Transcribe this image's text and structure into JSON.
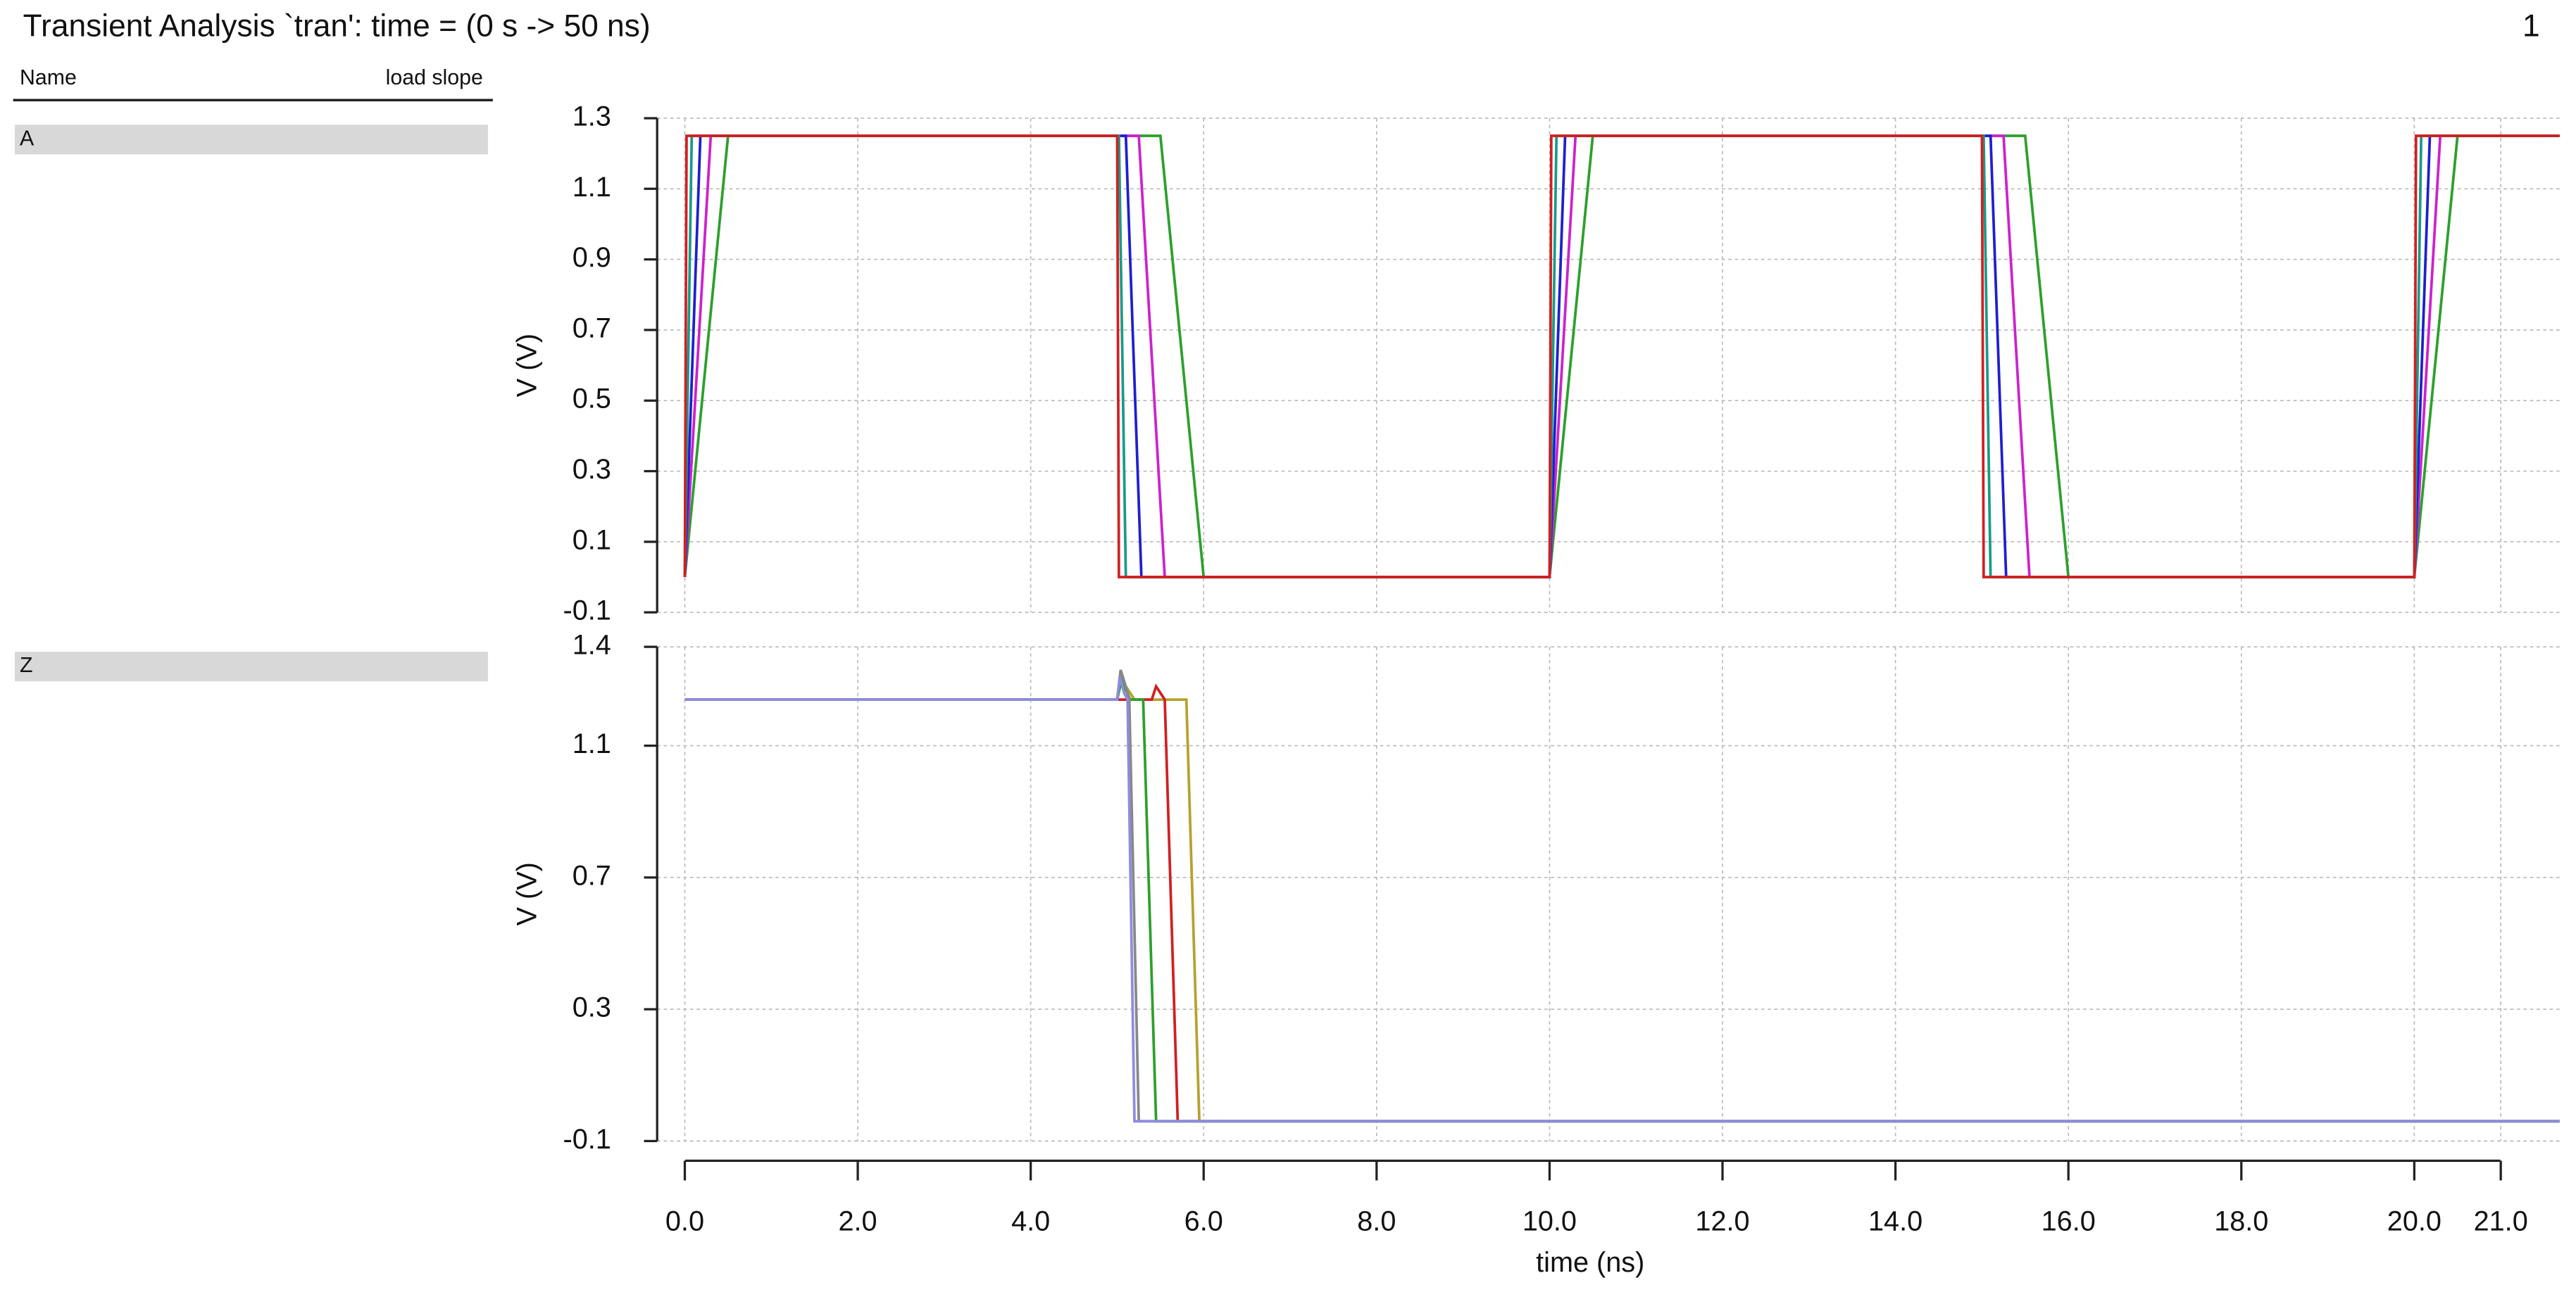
{
  "header": {
    "title": "Transient Analysis `tran': time = (0 s -> 50 ns)",
    "page": "1"
  },
  "signal_panel": {
    "column_name": "Name",
    "column_params": "load slope",
    "signals": [
      "A",
      "Z"
    ]
  },
  "chart_data": [
    {
      "type": "line",
      "ylabel": "V (V)",
      "xlim": [
        -0.32,
        21.68
      ],
      "ylim": [
        -0.1,
        1.3
      ],
      "yticks": [
        1.3,
        1.1,
        0.9,
        0.7,
        0.5,
        0.3,
        0.1,
        -0.1
      ],
      "grid": true,
      "series": [
        {
          "color": "#2ca02c",
          "x": [
            0,
            0.5,
            5.5,
            6.0,
            10,
            10.5,
            15.5,
            16.0,
            20,
            20.5,
            21.68
          ],
          "values": [
            0,
            1.25,
            1.25,
            0,
            0,
            1.25,
            1.25,
            0,
            0,
            1.25,
            1.25
          ]
        },
        {
          "color": "#cc22cc",
          "x": [
            0,
            0.3,
            5.25,
            5.55,
            10,
            10.3,
            15.25,
            15.55,
            20,
            20.3,
            21.68
          ],
          "values": [
            0,
            1.25,
            1.25,
            0,
            0,
            1.25,
            1.25,
            0,
            0,
            1.25,
            1.25
          ]
        },
        {
          "color": "#1f1fd0",
          "x": [
            0,
            0.18,
            5.1,
            5.28,
            10,
            10.18,
            15.1,
            15.28,
            20,
            20.18,
            21.68
          ],
          "values": [
            0,
            1.25,
            1.25,
            0,
            0,
            1.25,
            1.25,
            0,
            0,
            1.25,
            1.25
          ]
        },
        {
          "color": "#1a9a8a",
          "x": [
            0,
            0.08,
            5.02,
            5.1,
            10,
            10.08,
            15.02,
            15.1,
            20,
            20.08,
            21.68
          ],
          "values": [
            0,
            1.25,
            1.25,
            0,
            0,
            1.25,
            1.25,
            0,
            0,
            1.25,
            1.25
          ]
        },
        {
          "color": "#d02020",
          "x": [
            0,
            0.02,
            5.0,
            5.02,
            10,
            10.02,
            15.0,
            15.02,
            20,
            20.02,
            21.68
          ],
          "values": [
            0,
            1.25,
            1.25,
            0,
            0,
            1.25,
            1.25,
            0,
            0,
            1.25,
            1.25
          ]
        }
      ]
    },
    {
      "type": "line",
      "ylabel": "V (V)",
      "xlabel": "time (ns)",
      "xlim": [
        -0.32,
        21.68
      ],
      "ylim": [
        -0.1,
        1.4
      ],
      "yticks": [
        1.4,
        1.1,
        0.7,
        0.3,
        -0.1
      ],
      "grid": true,
      "xticks": [
        {
          "value": 0,
          "label": "0.0"
        },
        {
          "value": 2,
          "label": "2.0"
        },
        {
          "value": 4,
          "label": "4.0"
        },
        {
          "value": 6,
          "label": "6.0"
        },
        {
          "value": 8,
          "label": "8.0"
        },
        {
          "value": 10,
          "label": "10.0"
        },
        {
          "value": 12,
          "label": "12.0"
        },
        {
          "value": 14,
          "label": "14.0"
        },
        {
          "value": 16,
          "label": "16.0"
        },
        {
          "value": 18,
          "label": "18.0"
        },
        {
          "value": 20,
          "label": "20.0"
        },
        {
          "value": 21,
          "label": "21.0"
        }
      ],
      "series": [
        {
          "color": "#b8a030",
          "x": [
            0,
            5.0,
            5.05,
            5.2,
            5.8,
            5.95,
            21.68
          ],
          "values": [
            1.24,
            1.24,
            1.3,
            1.24,
            1.24,
            -0.04,
            -0.04
          ]
        },
        {
          "color": "#d02020",
          "x": [
            0,
            5.0,
            5.4,
            5.45,
            5.55,
            5.7,
            21.68
          ],
          "values": [
            1.24,
            1.24,
            1.24,
            1.28,
            1.24,
            -0.04,
            -0.04
          ]
        },
        {
          "color": "#2ca02c",
          "x": [
            0,
            5.0,
            5.05,
            5.15,
            5.3,
            5.45,
            21.68
          ],
          "values": [
            1.24,
            1.24,
            1.3,
            1.24,
            1.24,
            -0.04,
            -0.04
          ]
        },
        {
          "color": "#888888",
          "x": [
            0,
            5.0,
            5.04,
            5.1,
            5.14,
            5.25,
            21.68
          ],
          "values": [
            1.24,
            1.24,
            1.33,
            1.28,
            1.24,
            -0.04,
            -0.04
          ]
        },
        {
          "color": "#8c8ce0",
          "x": [
            0,
            5.0,
            5.03,
            5.08,
            5.12,
            5.2,
            21.68
          ],
          "values": [
            1.24,
            1.24,
            1.31,
            1.26,
            1.24,
            -0.04,
            -0.04
          ]
        }
      ]
    }
  ]
}
